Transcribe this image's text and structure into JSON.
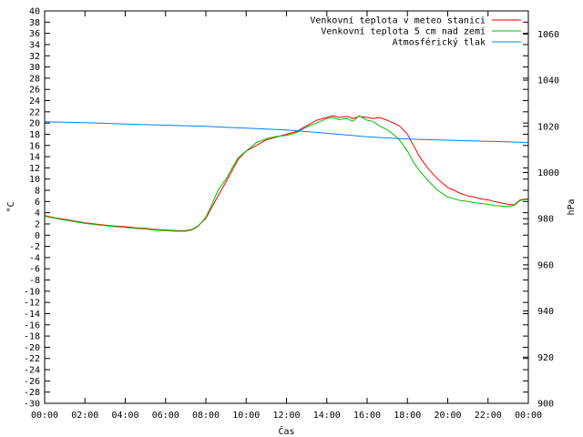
{
  "chart_data": {
    "type": "line",
    "xlabel": "Čas",
    "ylabel": "°C",
    "y2label": "hPa",
    "x_ticks": [
      "00:00",
      "02:00",
      "04:00",
      "06:00",
      "08:00",
      "10:00",
      "12:00",
      "14:00",
      "16:00",
      "18:00",
      "20:00",
      "22:00",
      "00:00"
    ],
    "xlim_hours": [
      0,
      24
    ],
    "ylim": [
      -30,
      40
    ],
    "y_tick_step": 2,
    "y2lim": [
      900,
      1070
    ],
    "y2_ticks": [
      900,
      920,
      940,
      960,
      980,
      1000,
      1020,
      1040,
      1060
    ],
    "grid": false,
    "legend_position": "top-right",
    "series": [
      {
        "name": "Venkovní teplota v meteo stanici",
        "color": "#ff0000",
        "axis": "left",
        "x": [
          0,
          0.5,
          1,
          1.5,
          2,
          2.5,
          3,
          3.5,
          4,
          4.5,
          5,
          5.5,
          6,
          6.5,
          7,
          7.3,
          7.6,
          8,
          8.3,
          8.6,
          9,
          9.3,
          9.6,
          10,
          10.5,
          11,
          11.5,
          12,
          12.5,
          13,
          13.5,
          14,
          14.3,
          14.6,
          15,
          15.3,
          15.6,
          16,
          16.3,
          16.6,
          17,
          17.3,
          17.6,
          18,
          18.3,
          18.6,
          19,
          19.5,
          20,
          20.3,
          20.6,
          21,
          21.3,
          21.6,
          22,
          22.3,
          22.6,
          23,
          23.3,
          23.6,
          24
        ],
        "y": [
          3.5,
          3.1,
          2.8,
          2.5,
          2.2,
          2.0,
          1.8,
          1.6,
          1.5,
          1.3,
          1.2,
          1.0,
          0.9,
          0.8,
          0.8,
          1.0,
          1.6,
          3.0,
          5.0,
          7.0,
          9.5,
          11.5,
          13.5,
          15.0,
          16.0,
          17.0,
          17.5,
          18.0,
          18.5,
          19.5,
          20.5,
          21.0,
          21.3,
          21.0,
          21.2,
          20.8,
          21.2,
          21.0,
          20.8,
          21.0,
          20.5,
          20.0,
          19.5,
          18.0,
          16.0,
          14.0,
          12.0,
          10.0,
          8.5,
          8.0,
          7.5,
          7.0,
          6.8,
          6.5,
          6.3,
          6.0,
          5.8,
          5.5,
          5.4,
          6.3,
          6.5
        ]
      },
      {
        "name": "Venkovní teplota 5 cm nad zemí",
        "color": "#00c000",
        "axis": "left",
        "x": [
          0,
          0.5,
          1,
          1.5,
          2,
          2.5,
          3,
          3.5,
          4,
          4.5,
          5,
          5.5,
          6,
          6.5,
          7,
          7.3,
          7.6,
          8,
          8.3,
          8.6,
          9,
          9.3,
          9.6,
          10,
          10.5,
          11,
          11.5,
          12,
          12.5,
          13,
          13.5,
          14,
          14.3,
          14.6,
          15,
          15.3,
          15.6,
          16,
          16.3,
          16.6,
          17,
          17.3,
          17.6,
          18,
          18.3,
          18.6,
          19,
          19.5,
          20,
          20.3,
          20.6,
          21,
          21.3,
          21.6,
          22,
          22.3,
          22.6,
          23,
          23.3,
          23.6,
          24
        ],
        "y": [
          3.4,
          3.0,
          2.7,
          2.4,
          2.1,
          1.9,
          1.7,
          1.5,
          1.4,
          1.2,
          1.1,
          0.9,
          0.8,
          0.7,
          0.7,
          0.9,
          1.5,
          3.2,
          5.5,
          8.0,
          10.0,
          12.0,
          13.8,
          15.0,
          16.5,
          17.2,
          17.6,
          17.8,
          18.3,
          19.3,
          20.0,
          20.8,
          21.0,
          20.6,
          20.8,
          20.3,
          21.3,
          20.5,
          20.3,
          19.5,
          18.8,
          18.0,
          17.0,
          15.0,
          13.0,
          11.5,
          9.8,
          8.0,
          6.8,
          6.5,
          6.2,
          6.0,
          5.8,
          5.7,
          5.5,
          5.3,
          5.2,
          5.1,
          5.3,
          6.2,
          6.4
        ]
      },
      {
        "name": "Atmosférický tlak",
        "color": "#0080ff",
        "axis": "right",
        "x": [
          0,
          2,
          4,
          6,
          8,
          10,
          12,
          14,
          16,
          18,
          20,
          22,
          24
        ],
        "y": [
          1022.0,
          1021.6,
          1021.0,
          1020.5,
          1020.0,
          1019.2,
          1018.4,
          1017.0,
          1015.5,
          1014.5,
          1014.0,
          1013.5,
          1013.0
        ]
      }
    ]
  }
}
